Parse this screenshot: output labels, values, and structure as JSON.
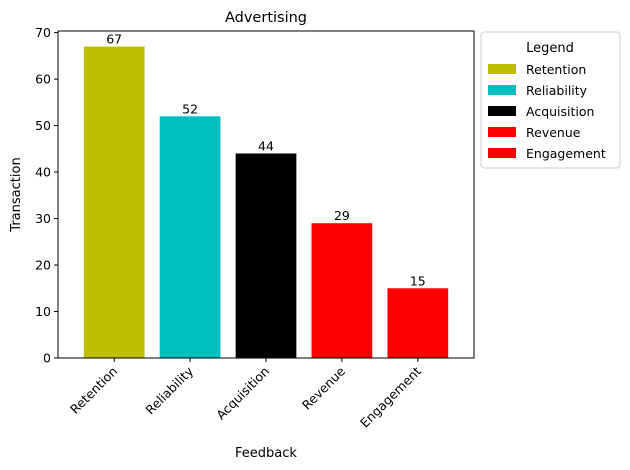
{
  "chart_data": {
    "type": "bar",
    "title": "Advertising",
    "xlabel": "Feedback",
    "ylabel": "Transaction",
    "categories": [
      "Retention",
      "Reliability",
      "Acquisition",
      "Revenue",
      "Engagement"
    ],
    "values": [
      67,
      52,
      44,
      29,
      15
    ],
    "colors": [
      "#bfbf00",
      "#00bfbf",
      "#000000",
      "#ff0000",
      "#ff0000"
    ],
    "ylim": [
      0,
      70.35
    ],
    "yticks": [
      0,
      10,
      20,
      30,
      40,
      50,
      60,
      70
    ],
    "grid": false,
    "legend": {
      "title": "Legend",
      "placement": "outside-top-right",
      "entries": [
        "Retention",
        "Reliability",
        "Acquisition",
        "Revenue",
        "Engagement"
      ]
    }
  }
}
